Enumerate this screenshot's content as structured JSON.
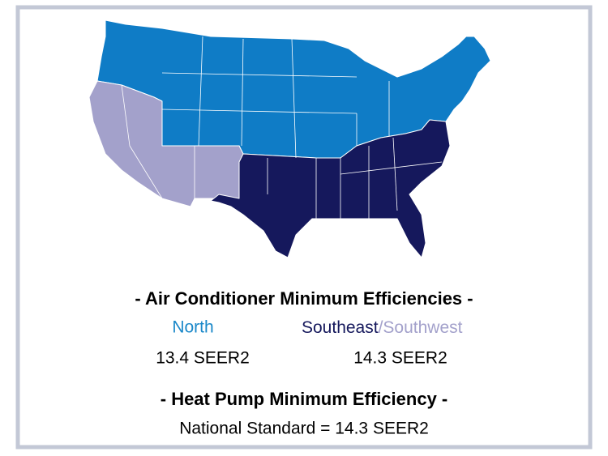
{
  "legend": {
    "ac_title": "- Air Conditioner Minimum Efficiencies -",
    "north": {
      "name": "North",
      "rating": "13.4 SEER2"
    },
    "south": {
      "name_southeast": "Southeast",
      "name_southwest": "/Southwest",
      "rating": "14.3 SEER2"
    },
    "hp_title": "- Heat Pump Minimum Efficiency -",
    "hp_standard": "National Standard = 14.3 SEER2"
  }
}
